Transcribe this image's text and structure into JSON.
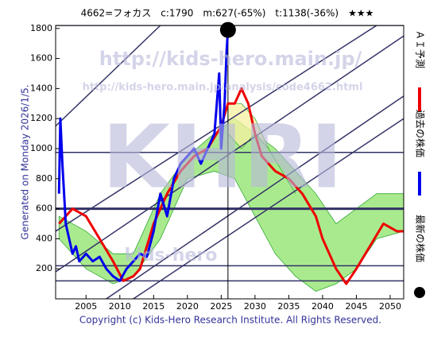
{
  "chart_data": {
    "type": "line",
    "title": "4662=フォカス　c:1790　m:627(-65%)　t:1138(-36%)　★★★",
    "side_note": "Generated on Monday 2026/1/5.",
    "copyright": "Copyright (c) Kids-Hero Research Institute. All Rights Reserved.",
    "watermarks": [
      "http://kids-hero.main.jp/",
      "http://kids-hero.main.jp/analysis/code4662.html",
      "KHRI",
      "kids-hero"
    ],
    "xlim": [
      2000.5,
      2052
    ],
    "ylim": [
      0,
      1820
    ],
    "xticks": [
      2005,
      2010,
      2015,
      2020,
      2025,
      2030,
      2035,
      2040,
      2045,
      2050
    ],
    "yticks": [
      200,
      400,
      600,
      800,
      1000,
      1200,
      1400,
      1600,
      1800
    ],
    "hlines": [
      1820,
      975,
      600,
      220,
      120
    ],
    "vline": 2026,
    "trend_lines": [
      {
        "x": [
          2000.5,
          2016
        ],
        "y": [
          1150,
          1820
        ]
      },
      {
        "x": [
          2000.5,
          2048
        ],
        "y": [
          450,
          1820
        ]
      },
      {
        "x": [
          2000.5,
          2052
        ],
        "y": [
          180,
          1750
        ]
      },
      {
        "x": [
          2008,
          2052
        ],
        "y": [
          0,
          1350
        ]
      },
      {
        "x": [
          2012,
          2052
        ],
        "y": [
          0,
          1200
        ]
      }
    ],
    "bands": [
      {
        "color": "#8de36a",
        "x": [
          2001,
          2005,
          2009,
          2012,
          2016,
          2020,
          2024,
          2027,
          2030,
          2033,
          2036,
          2039,
          2042,
          2045,
          2048,
          2052
        ],
        "upper": [
          550,
          450,
          300,
          300,
          700,
          950,
          1100,
          1200,
          1100,
          1000,
          850,
          700,
          500,
          600,
          700,
          700
        ],
        "lower": [
          400,
          200,
          100,
          150,
          400,
          800,
          850,
          800,
          550,
          300,
          150,
          50,
          100,
          200,
          400,
          450
        ]
      },
      {
        "color": "#f5f0a0",
        "x": [
          2026,
          2028,
          2030,
          2032,
          2034,
          2036
        ],
        "upper": [
          1300,
          1300,
          1200,
          1000,
          850,
          700
        ],
        "lower": [
          1100,
          1000,
          1100,
          1000,
          850,
          700
        ]
      }
    ],
    "series": [
      {
        "name": "ＡＩ予測",
        "color": "#ee0000",
        "kind": "line",
        "x": [
          2001,
          2003,
          2005,
          2007,
          2009,
          2010.5,
          2012,
          2013,
          2015,
          2017,
          2019,
          2021,
          2023,
          2025,
          2026,
          2027,
          2028,
          2029,
          2030,
          2031,
          2033,
          2035,
          2037,
          2039,
          2040,
          2042,
          2043.5,
          2045,
          2047,
          2049,
          2051,
          2052
        ],
        "values": [
          500,
          600,
          550,
          400,
          250,
          120,
          150,
          200,
          500,
          700,
          850,
          950,
          1000,
          1150,
          1300,
          1300,
          1400,
          1300,
          1100,
          950,
          850,
          800,
          700,
          550,
          400,
          200,
          100,
          200,
          350,
          500,
          450,
          450
        ]
      },
      {
        "name": "過去の株価",
        "color": "#0000ee",
        "kind": "line",
        "x": [
          2001,
          2001.2,
          2001.5,
          2002,
          2002.5,
          2003,
          2003.5,
          2004,
          2005,
          2006,
          2007,
          2008,
          2009,
          2010,
          2011,
          2012,
          2013,
          2014,
          2015,
          2016,
          2017,
          2018,
          2019,
          2020,
          2021,
          2022,
          2023,
          2024,
          2024.7,
          2025,
          2025.5,
          2025.8,
          2026
        ],
        "values": [
          700,
          1200,
          900,
          500,
          400,
          300,
          350,
          250,
          300,
          250,
          280,
          200,
          150,
          120,
          200,
          250,
          300,
          280,
          450,
          700,
          550,
          800,
          900,
          950,
          1000,
          900,
          1000,
          1100,
          1500,
          1000,
          1300,
          1650,
          1790
        ]
      },
      {
        "name": "最新の株価",
        "color": "#000000",
        "kind": "point",
        "x": [
          2026
        ],
        "values": [
          1790
        ]
      }
    ]
  }
}
